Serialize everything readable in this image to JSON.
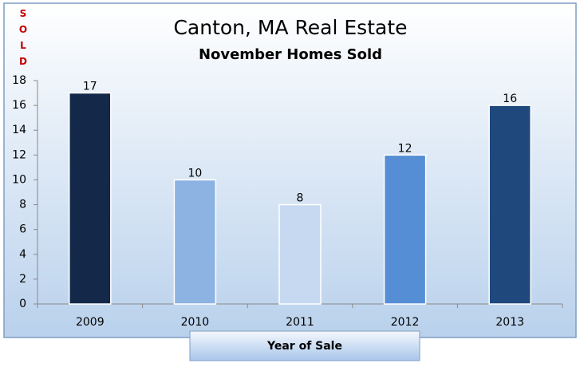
{
  "chart_data": {
    "type": "bar",
    "title": "Canton, MA Real Estate",
    "subtitle": "November Homes Sold",
    "ylabel": "SOLD",
    "xlabel": "Year of Sale",
    "categories": [
      "2009",
      "2010",
      "2011",
      "2012",
      "2013"
    ],
    "values": [
      17,
      10,
      8,
      12,
      16
    ],
    "colors": [
      "#14294a",
      "#8db3e2",
      "#c6d9f1",
      "#558ed5",
      "#1f497d"
    ],
    "ylim": [
      0,
      18
    ],
    "yticks": [
      0,
      2,
      4,
      6,
      8,
      10,
      12,
      14,
      16,
      18
    ],
    "grid": false
  }
}
